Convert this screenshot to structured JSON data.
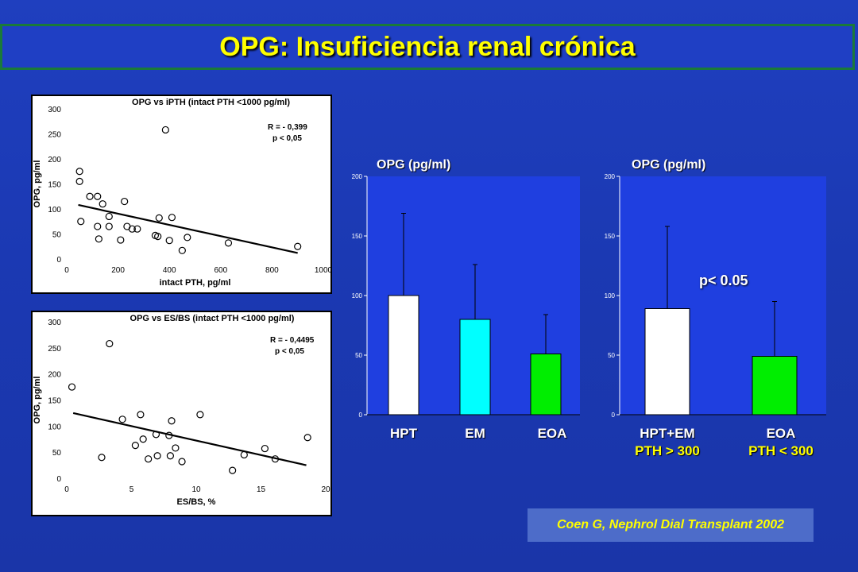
{
  "title": "OPG: Insuficiencia renal crónica",
  "citation": "Coen G, Nephrol Dial Transplant 2002",
  "colors": {
    "title": "#ffff00",
    "bar_bg": "#1f3fe0",
    "white": "#ffffff",
    "cyan": "#00ffff",
    "green": "#00ee00"
  },
  "chart_data": [
    {
      "type": "scatter",
      "title": "OPG vs iPTH (intact PTH <1000 pg/ml)",
      "xlabel": "intact PTH, pg/ml",
      "ylabel": "OPG, pg/ml",
      "xlim": [
        0,
        1000
      ],
      "ylim": [
        0,
        300
      ],
      "xticks": [
        0,
        200,
        400,
        600,
        800,
        1000
      ],
      "yticks": [
        0,
        50,
        100,
        150,
        200,
        250,
        300
      ],
      "stat_r": "R = -  0,399",
      "stat_p": "p < 0,05",
      "points": [
        [
          50,
          175
        ],
        [
          50,
          155
        ],
        [
          55,
          75
        ],
        [
          90,
          125
        ],
        [
          120,
          125
        ],
        [
          120,
          65
        ],
        [
          125,
          40
        ],
        [
          140,
          110
        ],
        [
          165,
          85
        ],
        [
          165,
          65
        ],
        [
          210,
          38
        ],
        [
          225,
          115
        ],
        [
          235,
          65
        ],
        [
          255,
          60
        ],
        [
          275,
          60
        ],
        [
          345,
          47
        ],
        [
          355,
          45
        ],
        [
          360,
          82
        ],
        [
          385,
          258
        ],
        [
          400,
          37
        ],
        [
          410,
          83
        ],
        [
          450,
          17
        ],
        [
          470,
          43
        ],
        [
          630,
          32
        ],
        [
          900,
          25
        ]
      ],
      "fit": [
        [
          45,
          108
        ],
        [
          900,
          12
        ]
      ]
    },
    {
      "type": "scatter",
      "title": "OPG vs ES/BS (intact PTH <1000 pg/ml)",
      "xlabel": "ES/BS, %",
      "ylabel": "OPG, pg/ml",
      "xlim": [
        0,
        20
      ],
      "ylim": [
        0,
        300
      ],
      "xticks": [
        0,
        5,
        10,
        15,
        20
      ],
      "yticks": [
        0,
        50,
        100,
        150,
        200,
        250,
        300
      ],
      "stat_r": "R = - 0,4495",
      "stat_p": "p < 0,05",
      "points": [
        [
          0.4,
          175
        ],
        [
          2.7,
          40
        ],
        [
          3.3,
          258
        ],
        [
          4.3,
          113
        ],
        [
          5.3,
          63
        ],
        [
          5.7,
          122
        ],
        [
          5.9,
          75
        ],
        [
          6.3,
          37
        ],
        [
          6.9,
          84
        ],
        [
          7.0,
          43
        ],
        [
          7.9,
          82
        ],
        [
          8.0,
          43
        ],
        [
          8.1,
          110
        ],
        [
          8.4,
          58
        ],
        [
          8.9,
          32
        ],
        [
          10.3,
          122
        ],
        [
          12.8,
          15
        ],
        [
          13.7,
          45
        ],
        [
          15.3,
          57
        ],
        [
          16.1,
          37
        ],
        [
          18.6,
          78
        ]
      ],
      "fit": [
        [
          0.5,
          125
        ],
        [
          18.5,
          25
        ]
      ]
    },
    {
      "type": "bar",
      "ylabel": "OPG (pg/ml)",
      "ylim": [
        0,
        200
      ],
      "yticks": [
        0,
        50,
        100,
        150,
        200
      ],
      "categories": [
        "HPT",
        "EM",
        "EOA"
      ],
      "values": [
        100,
        80,
        51
      ],
      "errors": [
        69,
        46,
        33
      ],
      "bar_colors": [
        "#ffffff",
        "#00ffff",
        "#00ee00"
      ]
    },
    {
      "type": "bar",
      "ylabel": "OPG (pg/ml)",
      "ylim": [
        0,
        200
      ],
      "yticks": [
        0,
        50,
        100,
        150,
        200
      ],
      "categories": [
        "HPT+EM",
        "EOA"
      ],
      "sublabels": [
        "PTH > 300",
        "PTH < 300"
      ],
      "values": [
        89,
        49
      ],
      "errors": [
        69,
        46
      ],
      "bar_colors": [
        "#ffffff",
        "#00ee00"
      ],
      "annotation": "p< 0.05"
    }
  ]
}
